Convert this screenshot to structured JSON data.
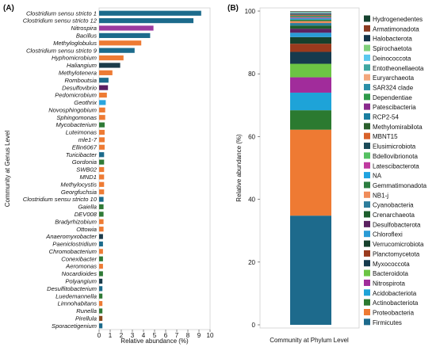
{
  "chart_data": [
    {
      "panel": "(A)",
      "type": "bar",
      "orientation": "horizontal",
      "xlabel": "Relative abundance (%)",
      "ylabel": "Community at Genus Level",
      "xlim": [
        0,
        10
      ],
      "xticks": [
        0,
        1,
        2,
        3,
        4,
        5,
        6,
        7,
        8,
        9,
        10
      ],
      "grid": false,
      "categories": [
        "Clostridium sensu stricto 1",
        "Clostridium sensu stricto 12",
        "Nitrospira",
        "Bacillus",
        "Methyloglobulus",
        "Clostridium sensu stricto 9",
        "Hyphomicrobium",
        "Haliangium",
        "Methylotenera",
        "Romboutsia",
        "Desulfovibrio",
        "Pedomicrobium",
        "Geothrix",
        "Novosphingobium",
        "Sphingomonas",
        "Mycobacterium",
        "Luteimonas",
        "mle1-7",
        "Ellin6067",
        "Turicibacter",
        "Gordonia",
        "SWB02",
        "MND1",
        "Methylocystis",
        "Georgfuchsia",
        "Clostridium sensu stricto 10",
        "Gaiella",
        "DEV008",
        "Bradyrhizobium",
        "Ottowia",
        "Anaeromyxobacter",
        "Paeniclostridium",
        "Chromobacterium",
        "Conexibacter",
        "Aeromonas",
        "Nocardioides",
        "Polyangium",
        "Desulfitobacterium",
        "Luedemannella",
        "Limnohabitans",
        "Runella",
        "Pirellula",
        "Sporacetigenium"
      ],
      "values": [
        9.2,
        8.5,
        4.9,
        4.6,
        3.8,
        3.2,
        2.2,
        1.9,
        1.2,
        0.85,
        0.8,
        0.7,
        0.6,
        0.55,
        0.55,
        0.5,
        0.5,
        0.5,
        0.5,
        0.45,
        0.45,
        0.45,
        0.45,
        0.45,
        0.45,
        0.4,
        0.4,
        0.4,
        0.4,
        0.4,
        0.35,
        0.35,
        0.35,
        0.35,
        0.35,
        0.35,
        0.3,
        0.3,
        0.3,
        0.3,
        0.3,
        0.3,
        0.3
      ],
      "colors": [
        "#1c6b8c",
        "#1c6b8c",
        "#9b3aa0",
        "#1c6b8c",
        "#ee7b34",
        "#1c6b8c",
        "#ee7b34",
        "#1b3b4a",
        "#ee7b34",
        "#1c6b8c",
        "#5a1f63",
        "#ee7b34",
        "#2aa6df",
        "#ee7b34",
        "#ee7b34",
        "#2f7a36",
        "#ee7b34",
        "#ee7b34",
        "#ee7b34",
        "#1c6b8c",
        "#2f7a36",
        "#ee7b34",
        "#ee7b34",
        "#ee7b34",
        "#ee7b34",
        "#1c6b8c",
        "#2f7a36",
        "#2f7a36",
        "#ee7b34",
        "#ee7b34",
        "#1b3b4a",
        "#1c6b8c",
        "#ee7b34",
        "#2f7a36",
        "#ee7b34",
        "#2f7a36",
        "#1b3b4a",
        "#1c6b8c",
        "#2f7a36",
        "#ee7b34",
        "#2f7a36",
        "#8b4a1e",
        "#1c6b8c"
      ]
    },
    {
      "panel": "(B)",
      "type": "bar",
      "stacked": true,
      "xlabel": "Community at Phylum Level",
      "ylabel": "Relative abundance (%)",
      "ylim": [
        0,
        100
      ],
      "yticks": [
        0,
        20,
        40,
        60,
        80,
        100
      ],
      "grid": false,
      "legend_position": "right",
      "legend": [
        {
          "name": "Hydrogenedentes",
          "color": "#15422f"
        },
        {
          "name": "Armatimonadota",
          "color": "#8b3a1f"
        },
        {
          "name": "Halobacterota",
          "color": "#14354a"
        },
        {
          "name": "Spirochaetota",
          "color": "#7fd07a"
        },
        {
          "name": "Deinococcota",
          "color": "#5bc8ee"
        },
        {
          "name": "Entotheonellaeota",
          "color": "#3fa7a1"
        },
        {
          "name": "Euryarchaeota",
          "color": "#f3a77c"
        },
        {
          "name": "SAR324 clade",
          "color": "#2b8fa8"
        },
        {
          "name": "Dependentiae",
          "color": "#2e9a4a"
        },
        {
          "name": "Patescibacteria",
          "color": "#8a2a8d"
        },
        {
          "name": "RCP2-54",
          "color": "#1b7ea0"
        },
        {
          "name": "Methylomirabilota",
          "color": "#2b5f2c"
        },
        {
          "name": "MBNT15",
          "color": "#d8612a"
        },
        {
          "name": "Elusimicrobiota",
          "color": "#1b4a57"
        },
        {
          "name": "Bdellovibrionota",
          "color": "#55c062"
        },
        {
          "name": "Latescibacterota",
          "color": "#c03aa0"
        },
        {
          "name": "NA",
          "color": "#1fa3e0"
        },
        {
          "name": "Gemmatimonadota",
          "color": "#2c7d3f"
        },
        {
          "name": "NB1-j",
          "color": "#f08c5a"
        },
        {
          "name": "Cyanobacteria",
          "color": "#2d7d9c"
        },
        {
          "name": "Crenarchaeota",
          "color": "#1d5e2c"
        },
        {
          "name": "Desulfobacterota",
          "color": "#5b2160"
        },
        {
          "name": "Chloroflexi",
          "color": "#2a9bd6"
        },
        {
          "name": "Verrucomicrobiota",
          "color": "#16402c"
        },
        {
          "name": "Planctomycetota",
          "color": "#9a3a1d"
        },
        {
          "name": "Myxococcota",
          "color": "#163a4d"
        },
        {
          "name": "Bacteroidota",
          "color": "#6cc444"
        },
        {
          "name": "Nitrospirota",
          "color": "#a12c9b"
        },
        {
          "name": "Acidobacteriota",
          "color": "#1ea3d8"
        },
        {
          "name": "Actinobacteriota",
          "color": "#2b7a30"
        },
        {
          "name": "Proteobacteria",
          "color": "#ee7a33"
        },
        {
          "name": "Firmicutes",
          "color": "#1d6a8c"
        }
      ],
      "stack_bottom_to_top": [
        {
          "name": "Firmicutes",
          "value": 34.8
        },
        {
          "name": "Proteobacteria",
          "value": 27.4
        },
        {
          "name": "Actinobacteriota",
          "value": 6.2
        },
        {
          "name": "Acidobacteriota",
          "value": 5.6
        },
        {
          "name": "Nitrospirota",
          "value": 4.9
        },
        {
          "name": "Bacteroidota",
          "value": 4.3
        },
        {
          "name": "Myxococcota",
          "value": 3.8
        },
        {
          "name": "Planctomycetota",
          "value": 2.6
        },
        {
          "name": "Verrucomicrobiota",
          "value": 2.1
        },
        {
          "name": "Chloroflexi",
          "value": 1.4
        },
        {
          "name": "Desulfobacterota",
          "value": 1.3
        },
        {
          "name": "Crenarchaeota",
          "value": 1.0
        },
        {
          "name": "Cyanobacteria",
          "value": 0.8
        },
        {
          "name": "NB1-j",
          "value": 0.6
        },
        {
          "name": "Gemmatimonadota",
          "value": 0.5
        },
        {
          "name": "NA",
          "value": 0.4
        },
        {
          "name": "Latescibacterota",
          "value": 0.3
        },
        {
          "name": "Bdellovibrionota",
          "value": 0.3
        },
        {
          "name": "Elusimicrobiota",
          "value": 0.25
        },
        {
          "name": "MBNT15",
          "value": 0.2
        },
        {
          "name": "Methylomirabilota",
          "value": 0.2
        },
        {
          "name": "RCP2-54",
          "value": 0.15
        },
        {
          "name": "Patescibacteria",
          "value": 0.15
        },
        {
          "name": "Dependentiae",
          "value": 0.1
        },
        {
          "name": "SAR324 clade",
          "value": 0.1
        },
        {
          "name": "Euryarchaeota",
          "value": 0.1
        },
        {
          "name": "Entotheonellaeota",
          "value": 0.1
        },
        {
          "name": "Deinococcota",
          "value": 0.1
        },
        {
          "name": "Spirochaetota",
          "value": 0.05
        },
        {
          "name": "Halobacterota",
          "value": 0.05
        },
        {
          "name": "Armatimonadota",
          "value": 0.05
        },
        {
          "name": "Hydrogenedentes",
          "value": 0.05
        }
      ]
    }
  ]
}
